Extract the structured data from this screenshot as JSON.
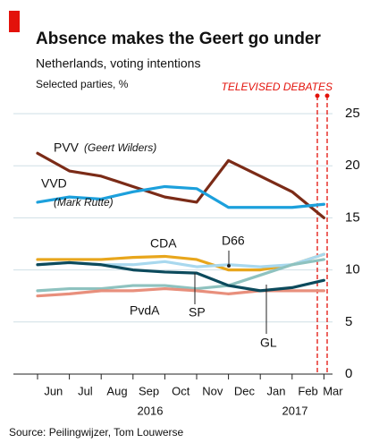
{
  "chart_data": {
    "type": "line",
    "title": "Absence makes the Geert go under",
    "subtitle": "Netherlands, voting intentions",
    "y_label": "Selected parties, %",
    "source": "Source: Peilingwijzer, Tom Louwerse",
    "annotations": [
      "(Geert Wilders)",
      "(Mark Rutte)",
      "TELEVISED DEBATES"
    ],
    "x": [
      "2016-06",
      "2016-07",
      "2016-08",
      "2016-09",
      "2016-10",
      "2016-11",
      "2016-12",
      "2017-01",
      "2017-02",
      "2017-03"
    ],
    "categories": [
      "Jun",
      "Jul",
      "Aug",
      "Sep",
      "Oct",
      "Nov",
      "Dec",
      "Jan",
      "Feb",
      "Mar"
    ],
    "years": [
      "2016",
      "2017"
    ],
    "ylim": [
      0,
      25
    ],
    "yticks": [
      0,
      5,
      10,
      15,
      20,
      25
    ],
    "grid": true,
    "series": [
      {
        "name": "PVV",
        "color": "#7b2b17",
        "values": [
          21.2,
          19.5,
          19,
          18,
          17,
          16.5,
          20.5,
          19,
          17.5,
          15
        ]
      },
      {
        "name": "VVD",
        "color": "#1ca0dc",
        "values": [
          16.5,
          17,
          16.8,
          17.5,
          18,
          17.8,
          16,
          16,
          16,
          16.3
        ]
      },
      {
        "name": "CDA",
        "color": "#e8a61c",
        "values": [
          11,
          11,
          11,
          11.2,
          11.3,
          11,
          10,
          10,
          10.5,
          11.5
        ]
      },
      {
        "name": "D66",
        "color": "#a8d8ee",
        "values": [
          10.5,
          10.7,
          10.5,
          10.5,
          10.8,
          10.3,
          10.5,
          10.3,
          10.5,
          11.5
        ]
      },
      {
        "name": "GL",
        "color": "#8ec2bf",
        "values": [
          8,
          8.2,
          8.2,
          8.5,
          8.5,
          8.2,
          8.5,
          9.5,
          10.5,
          11
        ]
      },
      {
        "name": "PvdA",
        "color": "#e88f7c",
        "values": [
          7.5,
          7.7,
          8,
          8,
          8.2,
          8,
          7.7,
          8,
          8,
          8
        ]
      },
      {
        "name": "SP",
        "color": "#0c4a5c",
        "values": [
          10.5,
          10.7,
          10.5,
          10,
          9.8,
          9.7,
          8.5,
          8,
          8.3,
          9
        ]
      }
    ]
  }
}
